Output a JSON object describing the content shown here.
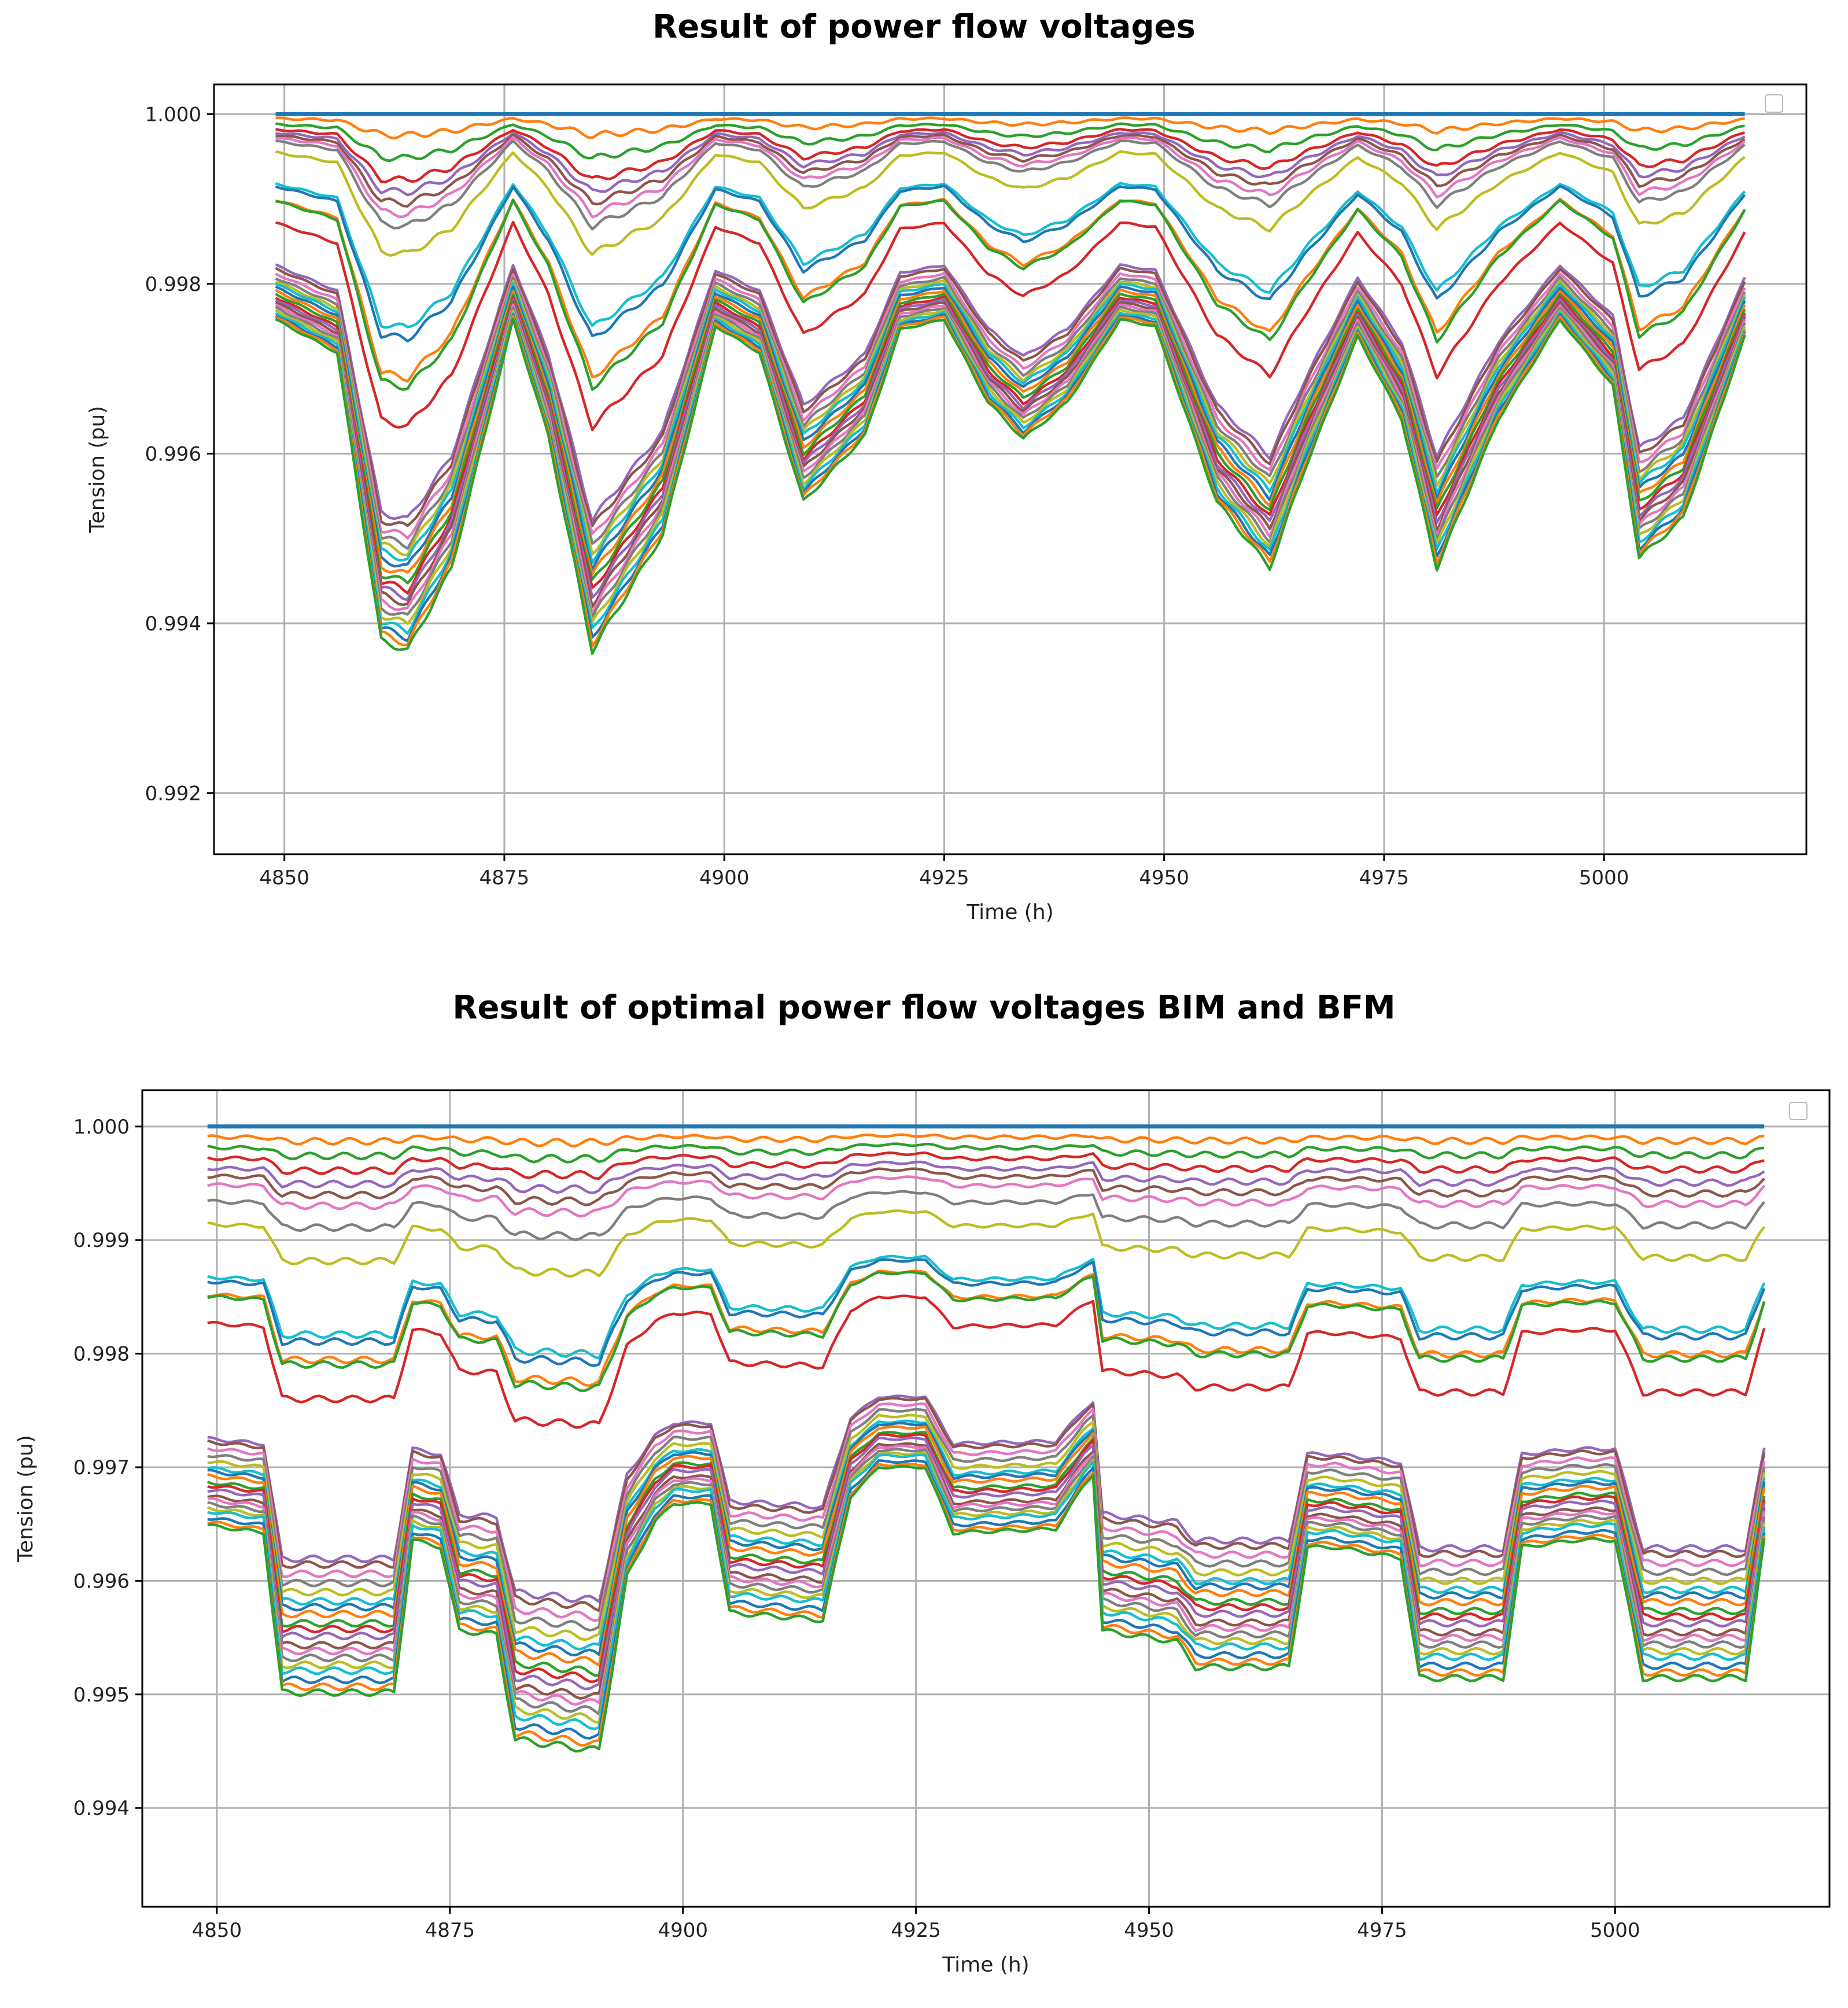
{
  "chart_data": [
    {
      "type": "line",
      "title": "Result of power flow voltages",
      "xlabel": "Time (h)",
      "ylabel": "Tension (pu)",
      "xlim": [
        4842,
        5023
      ],
      "ylim": [
        0.99128,
        1.00035
      ],
      "xticks": [
        "4850",
        "4875",
        "4900",
        "4925",
        "4950",
        "4975",
        "5000"
      ],
      "yticks": [
        "0.992",
        "0.994",
        "0.996",
        "0.998",
        "1.000"
      ],
      "grid": true,
      "legend": "top-right (empty)",
      "x_range": [
        4849,
        5016
      ],
      "series_note": "approx. 33 bus voltage series; each series is base voltage minus depth x daily load profile",
      "load_profile_hours": [
        4849,
        4856,
        4861,
        4864,
        4869,
        4876,
        4880,
        4885,
        4893,
        4899,
        4904,
        4909,
        4916,
        4920,
        4925,
        4930,
        4934,
        4939,
        4945,
        4949,
        4956,
        4962,
        4966,
        4972,
        4977,
        4981,
        4988,
        4995,
        5001,
        5004,
        5009,
        5016
      ],
      "load_profile": [
        0.0,
        0.1,
        0.97,
        1.0,
        0.75,
        0.0,
        0.35,
        1.0,
        0.65,
        0.02,
        0.1,
        0.55,
        0.35,
        0.03,
        0.0,
        0.25,
        0.36,
        0.25,
        0.0,
        0.02,
        0.55,
        0.75,
        0.45,
        0.05,
        0.3,
        0.75,
        0.3,
        0.0,
        0.2,
        0.72,
        0.6,
        0.05
      ],
      "series_base": [
        1.0,
        0.99995,
        0.99988,
        0.99982,
        0.99978,
        0.99975,
        0.99972,
        0.99968,
        0.99955,
        0.99918,
        0.99915,
        0.99899,
        0.99898,
        0.99872,
        0.99822,
        0.99818,
        0.99812,
        0.99807,
        0.99803,
        0.998,
        0.99796,
        0.99792,
        0.99788,
        0.99784,
        0.99781,
        0.99778,
        0.99775,
        0.99772,
        0.99769,
        0.99766,
        0.99763,
        0.99761,
        0.99758
      ],
      "series_depth": [
        0.0,
        0.0002,
        0.0004,
        0.0006,
        0.0007,
        0.0008,
        0.0009,
        0.001,
        0.0012,
        0.0017,
        0.0018,
        0.0021,
        0.0022,
        0.0024,
        0.003,
        0.00305,
        0.0031,
        0.00315,
        0.0032,
        0.00325,
        0.0033,
        0.00335,
        0.0034,
        0.00345,
        0.0035,
        0.00355,
        0.0036,
        0.00365,
        0.0037,
        0.00375,
        0.0038,
        0.00385,
        0.0039
      ]
    },
    {
      "type": "line",
      "title": "Result of optimal power flow voltages BIM and BFM",
      "xlabel": "Time (h)",
      "ylabel": "Tension (pu)",
      "xlim": [
        4842,
        5023
      ],
      "ylim": [
        0.99313,
        1.00032
      ],
      "xticks": [
        "4850",
        "4875",
        "4900",
        "4925",
        "4950",
        "4975",
        "5000"
      ],
      "yticks": [
        "0.994",
        "0.995",
        "0.996",
        "0.997",
        "0.998",
        "0.999",
        "1.000"
      ],
      "grid": true,
      "legend": "top-right (empty)",
      "x_range": [
        4849,
        5016
      ],
      "series_note": "approx. 33 bus voltage series with step-like daily tap changes; each series is base voltage minus depth x step profile",
      "load_profile_hours": [
        4849,
        4855,
        4857,
        4869,
        4871,
        4874,
        4876,
        4880,
        4882,
        4891,
        4894,
        4897,
        4899,
        4903,
        4905,
        4915,
        4918,
        4921,
        4926,
        4929,
        4940,
        4943,
        4944,
        4945,
        4953,
        4955,
        4965,
        4967,
        4970,
        4977,
        4979,
        4988,
        4990,
        4996,
        5000,
        5003,
        5014,
        5016
      ],
      "load_profile": [
        0.16,
        0.18,
        0.62,
        0.62,
        0.2,
        0.22,
        0.45,
        0.46,
        0.75,
        0.78,
        0.3,
        0.15,
        0.1,
        0.1,
        0.4,
        0.42,
        0.08,
        0.0,
        0.0,
        0.18,
        0.17,
        0.05,
        0.02,
        0.45,
        0.48,
        0.55,
        0.55,
        0.22,
        0.22,
        0.25,
        0.58,
        0.58,
        0.22,
        0.2,
        0.2,
        0.58,
        0.58,
        0.2
      ],
      "series_base": [
        1.0,
        0.99992,
        0.99984,
        0.99976,
        0.99968,
        0.99962,
        0.99955,
        0.99942,
        0.99925,
        0.99885,
        0.99882,
        0.99872,
        0.99871,
        0.9985,
        0.99762,
        0.9976,
        0.99755,
        0.9975,
        0.99745,
        0.9974,
        0.99738,
        0.99735,
        0.9973,
        0.99728,
        0.99725,
        0.9972,
        0.99718,
        0.99715,
        0.99712,
        0.9971,
        0.99705,
        0.99702,
        0.997
      ],
      "series_depth": [
        0.0,
        8e-05,
        0.00016,
        0.00024,
        0.0003,
        0.00036,
        0.0004,
        0.0005,
        0.0007,
        0.0011,
        0.00115,
        0.00125,
        0.0013,
        0.00145,
        0.0023,
        0.00235,
        0.0024,
        0.00245,
        0.0025,
        0.00255,
        0.0026,
        0.00265,
        0.0027,
        0.00275,
        0.0028,
        0.00285,
        0.0029,
        0.00295,
        0.003,
        0.00305,
        0.0031,
        0.00315,
        0.0032
      ]
    }
  ],
  "palette": [
    "#1f77b4",
    "#ff7f0e",
    "#2ca02c",
    "#d62728",
    "#9467bd",
    "#8c564b",
    "#e377c2",
    "#7f7f7f",
    "#bcbd22",
    "#17becf"
  ]
}
